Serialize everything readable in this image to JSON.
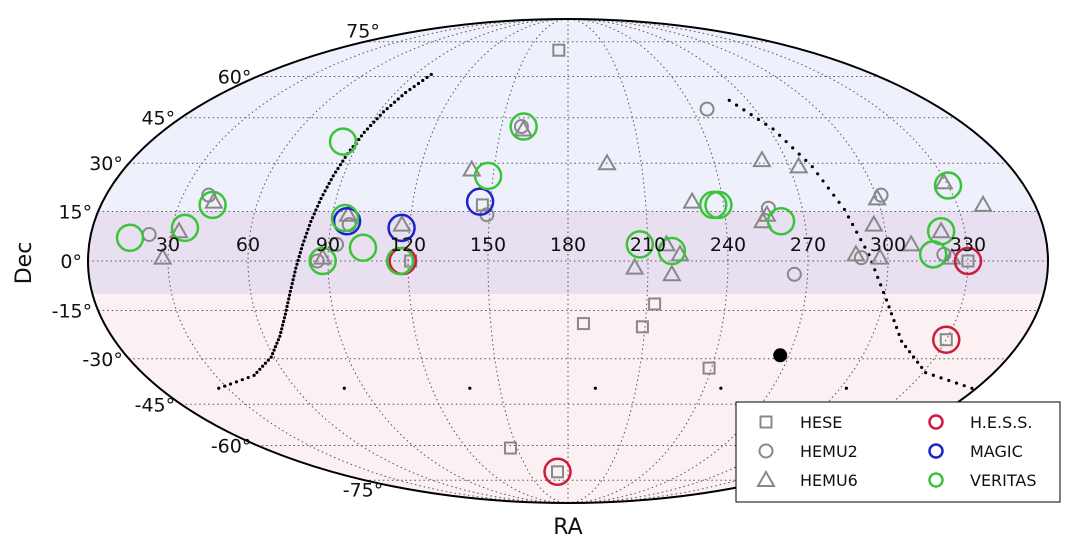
{
  "chart_data": {
    "type": "scatter",
    "projection": "mollweide",
    "xlabel": "RA",
    "ylabel": "Dec",
    "ra_ticks": [
      330,
      300,
      270,
      240,
      210,
      180,
      150,
      120,
      90,
      60,
      30
    ],
    "ra_tick_labels": [
      "330",
      "300",
      "270",
      "240",
      "210",
      "180",
      "150",
      "120",
      "90",
      "60",
      "30"
    ],
    "dec_ticks": [
      75,
      60,
      45,
      30,
      15,
      0,
      -15,
      -30,
      -45,
      -60,
      -75
    ],
    "dec_tick_labels": [
      "75°",
      "60°",
      "45°",
      "30°",
      "15°",
      "0°",
      "-15°",
      "-30°",
      "-45°",
      "-60°",
      "-75°"
    ],
    "ra_increases": "leftward",
    "grid": true,
    "legend_position": "bottom-right",
    "sky_bands": [
      {
        "dec_range": [
          15,
          90
        ],
        "color": "#eef0fb"
      },
      {
        "dec_range": [
          -10,
          15
        ],
        "color": "#e8e0f1"
      },
      {
        "dec_range": [
          -90,
          -10
        ],
        "color": "#fbf1f2"
      }
    ],
    "series": [
      {
        "name": "HESE",
        "marker": "square",
        "color": "#888888",
        "points": [
          [
            173,
            71
          ],
          [
            147,
            17
          ],
          [
            330,
            0
          ],
          [
            330,
            -24
          ],
          [
            213,
            -13
          ],
          [
            209,
            -20
          ],
          [
            186,
            -19
          ],
          [
            239,
            -33
          ],
          [
            121,
            0
          ],
          [
            146,
            -61
          ],
          [
            172,
            -71
          ]
        ]
      },
      {
        "name": "HEMU2",
        "marker": "circle",
        "color": "#888888",
        "points": [
          [
            247,
            48
          ],
          [
            302,
            20
          ],
          [
            290,
            1
          ],
          [
            265,
            -4
          ],
          [
            257,
            16
          ],
          [
            321,
            2
          ],
          [
            149,
            14
          ],
          [
            159,
            42
          ],
          [
            97,
            11
          ],
          [
            86,
            0
          ],
          [
            22,
            8
          ],
          [
            40,
            20
          ],
          [
            93,
            5
          ]
        ]
      },
      {
        "name": "HEMU6",
        "marker": "triangle",
        "color": "#888888",
        "points": [
          [
            329,
            24
          ],
          [
            340,
            17
          ],
          [
            321,
            9
          ],
          [
            324,
            1
          ],
          [
            309,
            5
          ],
          [
            300,
            19
          ],
          [
            296,
            11
          ],
          [
            297,
            1
          ],
          [
            288,
            2
          ],
          [
            274,
            29
          ],
          [
            260,
            31
          ],
          [
            256,
            14
          ],
          [
            254,
            12
          ],
          [
            228,
            18
          ],
          [
            222,
            2
          ],
          [
            217,
            5
          ],
          [
            196,
            30
          ],
          [
            205,
            -2
          ],
          [
            219,
            -4
          ],
          [
            141,
            28
          ],
          [
            160,
            41
          ],
          [
            117,
            11
          ],
          [
            96,
            14
          ],
          [
            88,
            1
          ],
          [
            43,
            18
          ],
          [
            33,
            9
          ],
          [
            28,
            1
          ]
        ]
      },
      {
        "name": "H.E.S.S.",
        "marker": "open-circle",
        "color": "#cc1d3c",
        "points": [
          [
            330,
            0
          ],
          [
            330,
            -24
          ],
          [
            118,
            0
          ],
          [
            172,
            -71
          ]
        ]
      },
      {
        "name": "MAGIC",
        "marker": "open-circle",
        "color": "#1a24cc",
        "points": [
          [
            146,
            18
          ],
          [
            117,
            10
          ],
          [
            96,
            12
          ]
        ]
      },
      {
        "name": "VERITAS",
        "marker": "open-circle",
        "color": "#3bc43b",
        "points": [
          [
            330,
            23
          ],
          [
            321,
            9
          ],
          [
            317,
            2
          ],
          [
            261,
            12
          ],
          [
            238,
            17
          ],
          [
            236,
            17
          ],
          [
            219,
            3
          ],
          [
            207,
            5
          ],
          [
            148,
            26
          ],
          [
            160,
            42
          ],
          [
            117,
            0
          ],
          [
            103,
            4
          ],
          [
            95,
            13
          ],
          [
            88,
            0
          ],
          [
            83,
            37
          ],
          [
            43,
            17
          ],
          [
            35,
            10
          ],
          [
            15,
            7
          ]
        ]
      },
      {
        "name": "Galactic plane",
        "marker": "dotted-line",
        "color": "#000000",
        "points": [
          [
            99.52,
            60.81
          ],
          [
            95.17,
            53.95
          ],
          [
            92.16,
            47.02
          ],
          [
            89.8,
            40.05
          ],
          [
            87.79,
            33.05
          ],
          [
            85.94,
            26.02
          ],
          [
            84.13,
            18.98
          ],
          [
            82.26,
            11.93
          ],
          [
            80.24,
            4.88
          ],
          [
            77.9,
            -2.15
          ],
          [
            75.06,
            -9.15
          ],
          [
            71.38,
            -16.08
          ],
          [
            66.31,
            -22.91
          ],
          [
            58.72,
            -29.47
          ],
          [
            46.41,
            -35.36
          ],
          [
            26.04,
            -39.58
          ],
          [
            358.1,
            -39.6
          ],
          [
            331.16,
            -34.46
          ],
          [
            312.59,
            -24.49
          ],
          [
            301.02,
            -11.79
          ],
          [
            292.89,
            1.9
          ],
          [
            286.1,
            15.62
          ],
          [
            279.48,
            28.91
          ],
          [
            271.75,
            41.17
          ],
          [
            260.88,
            51.11
          ]
        ]
      },
      {
        "name": "Galactic center",
        "marker": "filled-circle",
        "color": "#000000",
        "points": [
          [
            266.4,
            -28.9
          ]
        ]
      }
    ]
  },
  "legend": {
    "entries": [
      {
        "label": "HESE",
        "marker": "square",
        "color": "#888888"
      },
      {
        "label": "HEMU2",
        "marker": "circle",
        "color": "#888888"
      },
      {
        "label": "HEMU6",
        "marker": "triangle",
        "color": "#888888"
      },
      {
        "label": "H.E.S.S.",
        "marker": "open-circle",
        "color": "#cc1d3c"
      },
      {
        "label": "MAGIC",
        "marker": "open-circle",
        "color": "#1a24cc"
      },
      {
        "label": "VERITAS",
        "marker": "open-circle",
        "color": "#3bc43b"
      }
    ]
  }
}
